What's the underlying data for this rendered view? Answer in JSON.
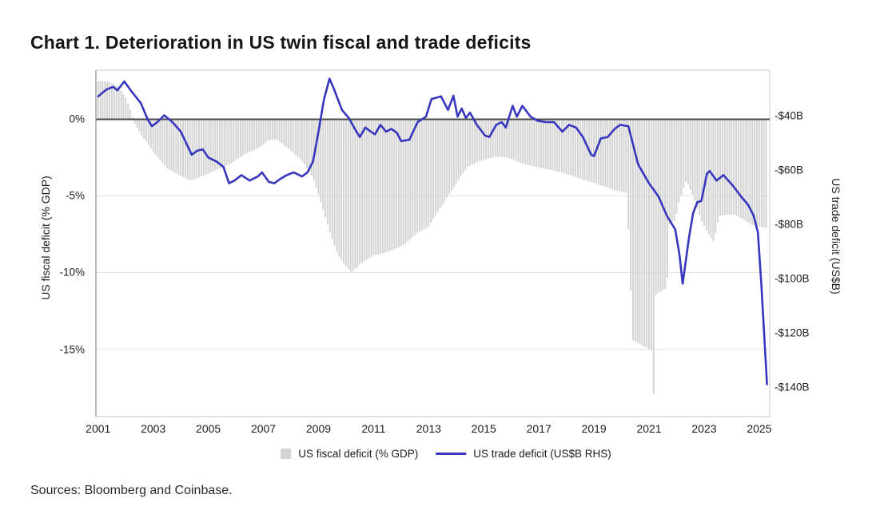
{
  "title": "Chart 1. Deterioration in US twin fiscal and trade deficits",
  "source_note": "Sources: Bloomberg and Coinbase.",
  "legend": [
    {
      "label": "US fiscal deficit (% GDP)",
      "swatch": "square",
      "color": "#d4d4d4"
    },
    {
      "label": "US trade deficit (US$B RHS)",
      "swatch": "line",
      "color": "#3737bd"
    }
  ],
  "colors": {
    "bar": "#d4d4d4",
    "line": "#3737bd",
    "zero_line": "#4a4a4a",
    "grid": "#e3e3e3",
    "plot_border": "#c9c9c9",
    "axis_spine": "#8a8a8a",
    "text": "#1c1c1c"
  },
  "chart_data": {
    "type": "bar",
    "subtype": "combo-bar-line-dual-axis",
    "x_axis": {
      "min": 2000.92,
      "max": 2025.38,
      "ticks": [
        2001,
        2003,
        2005,
        2007,
        2009,
        2011,
        2013,
        2015,
        2017,
        2019,
        2021,
        2023,
        2025
      ]
    },
    "left_axis": {
      "label": "US fiscal deficit (% GDP)",
      "min": -19.4,
      "max": 3.2,
      "ticks": [
        {
          "value": 0,
          "label": "0%"
        },
        {
          "value": -5,
          "label": "-5%"
        },
        {
          "value": -10,
          "label": "-10%"
        },
        {
          "value": -15,
          "label": "-15%"
        }
      ],
      "gridlines": [
        -5,
        -10,
        -15
      ]
    },
    "right_axis": {
      "label": "US trade deficit (US$B)",
      "min": -150.9,
      "max": -23.4,
      "ticks": [
        {
          "value": -40,
          "label": "-$40B"
        },
        {
          "value": -60,
          "label": "-$60B"
        },
        {
          "value": -80,
          "label": "-$80B"
        },
        {
          "value": -100,
          "label": "-$100B"
        },
        {
          "value": -120,
          "label": "-$120B"
        },
        {
          "value": -140,
          "label": "-$140B"
        }
      ]
    },
    "series": [
      {
        "name": "US fiscal deficit (% GDP)",
        "type": "bar",
        "axis": "left",
        "unit": "% of GDP",
        "start": 2001.0,
        "end": 2025.25,
        "interval_years": 0.08333,
        "points": [
          [
            2001.0,
            2.5
          ],
          [
            2001.4,
            2.45
          ],
          [
            2001.75,
            2.1
          ],
          [
            2002.0,
            1.4
          ],
          [
            2002.2,
            0.5
          ],
          [
            2002.3,
            -0.2
          ],
          [
            2002.6,
            -1.1
          ],
          [
            2003.0,
            -2.1
          ],
          [
            2003.5,
            -3.2
          ],
          [
            2004.0,
            -3.7
          ],
          [
            2004.35,
            -4.0
          ],
          [
            2004.8,
            -3.7
          ],
          [
            2005.3,
            -3.3
          ],
          [
            2005.8,
            -2.9
          ],
          [
            2006.3,
            -2.3
          ],
          [
            2006.8,
            -1.9
          ],
          [
            2007.2,
            -1.35
          ],
          [
            2007.5,
            -1.3
          ],
          [
            2007.9,
            -1.9
          ],
          [
            2008.4,
            -2.7
          ],
          [
            2008.8,
            -3.8
          ],
          [
            2009.1,
            -5.5
          ],
          [
            2009.4,
            -7.3
          ],
          [
            2009.7,
            -8.8
          ],
          [
            2010.0,
            -9.6
          ],
          [
            2010.2,
            -10.0
          ],
          [
            2010.6,
            -9.3
          ],
          [
            2011.0,
            -8.9
          ],
          [
            2011.6,
            -8.6
          ],
          [
            2012.1,
            -8.2
          ],
          [
            2012.6,
            -7.4
          ],
          [
            2013.0,
            -7.0
          ],
          [
            2013.2,
            -6.4
          ],
          [
            2013.6,
            -5.3
          ],
          [
            2014.0,
            -4.2
          ],
          [
            2014.4,
            -3.1
          ],
          [
            2014.9,
            -2.7
          ],
          [
            2015.4,
            -2.45
          ],
          [
            2015.9,
            -2.5
          ],
          [
            2016.4,
            -2.9
          ],
          [
            2016.9,
            -3.1
          ],
          [
            2017.4,
            -3.3
          ],
          [
            2017.9,
            -3.5
          ],
          [
            2018.4,
            -3.8
          ],
          [
            2018.9,
            -4.1
          ],
          [
            2019.4,
            -4.4
          ],
          [
            2019.9,
            -4.7
          ],
          [
            2020.2,
            -4.8
          ],
          [
            2020.4,
            -14.4
          ],
          [
            2020.7,
            -14.7
          ],
          [
            2021.0,
            -15.0
          ],
          [
            2021.1,
            -15.1
          ],
          [
            2021.17,
            -18.1
          ],
          [
            2021.25,
            -11.4
          ],
          [
            2021.65,
            -11.0
          ],
          [
            2021.75,
            -6.8
          ],
          [
            2021.95,
            -6.6
          ],
          [
            2022.1,
            -5.3
          ],
          [
            2022.35,
            -4.0
          ],
          [
            2022.6,
            -5.0
          ],
          [
            2022.9,
            -6.6
          ],
          [
            2023.1,
            -7.3
          ],
          [
            2023.35,
            -8.0
          ],
          [
            2023.55,
            -6.3
          ],
          [
            2024.1,
            -6.2
          ],
          [
            2024.4,
            -6.5
          ],
          [
            2024.75,
            -6.9
          ],
          [
            2025.0,
            -7.0
          ],
          [
            2025.25,
            -7.1
          ]
        ]
      },
      {
        "name": "US trade deficit (US$B RHS)",
        "type": "line",
        "axis": "right",
        "unit": "US$B",
        "points": [
          [
            2001.0,
            -33
          ],
          [
            2001.3,
            -30.5
          ],
          [
            2001.55,
            -29.5
          ],
          [
            2001.7,
            -30.8
          ],
          [
            2001.95,
            -27.5
          ],
          [
            2002.2,
            -31
          ],
          [
            2002.55,
            -35.5
          ],
          [
            2002.8,
            -41.5
          ],
          [
            2002.95,
            -44
          ],
          [
            2003.15,
            -42.5
          ],
          [
            2003.4,
            -40
          ],
          [
            2003.7,
            -42.5
          ],
          [
            2004.0,
            -46
          ],
          [
            2004.4,
            -54.5
          ],
          [
            2004.6,
            -53
          ],
          [
            2004.8,
            -52.5
          ],
          [
            2005.0,
            -55.5
          ],
          [
            2005.3,
            -57
          ],
          [
            2005.55,
            -59
          ],
          [
            2005.75,
            -65
          ],
          [
            2005.95,
            -64
          ],
          [
            2006.2,
            -62
          ],
          [
            2006.5,
            -64
          ],
          [
            2006.8,
            -62.5
          ],
          [
            2006.95,
            -61
          ],
          [
            2007.2,
            -64.5
          ],
          [
            2007.4,
            -65
          ],
          [
            2007.6,
            -63.5
          ],
          [
            2007.85,
            -62
          ],
          [
            2008.1,
            -61
          ],
          [
            2008.4,
            -62.5
          ],
          [
            2008.6,
            -61
          ],
          [
            2008.8,
            -57
          ],
          [
            2009.0,
            -46
          ],
          [
            2009.2,
            -34
          ],
          [
            2009.4,
            -26.5
          ],
          [
            2009.55,
            -30
          ],
          [
            2009.85,
            -38
          ],
          [
            2010.1,
            -41
          ],
          [
            2010.35,
            -45.5
          ],
          [
            2010.5,
            -48
          ],
          [
            2010.7,
            -44.5
          ],
          [
            2010.9,
            -46
          ],
          [
            2011.05,
            -47
          ],
          [
            2011.25,
            -43.5
          ],
          [
            2011.45,
            -46
          ],
          [
            2011.65,
            -45
          ],
          [
            2011.85,
            -46.5
          ],
          [
            2012.0,
            -49.5
          ],
          [
            2012.3,
            -49
          ],
          [
            2012.6,
            -42.5
          ],
          [
            2012.9,
            -40.5
          ],
          [
            2013.1,
            -34
          ],
          [
            2013.45,
            -33
          ],
          [
            2013.7,
            -38
          ],
          [
            2013.9,
            -32.8
          ],
          [
            2014.05,
            -40.5
          ],
          [
            2014.2,
            -37.5
          ],
          [
            2014.35,
            -41
          ],
          [
            2014.5,
            -39
          ],
          [
            2014.75,
            -43.5
          ],
          [
            2015.05,
            -47.5
          ],
          [
            2015.2,
            -48
          ],
          [
            2015.45,
            -43.5
          ],
          [
            2015.65,
            -42.5
          ],
          [
            2015.8,
            -44.5
          ],
          [
            2016.05,
            -36.5
          ],
          [
            2016.2,
            -40.5
          ],
          [
            2016.4,
            -36.5
          ],
          [
            2016.7,
            -40.5
          ],
          [
            2016.95,
            -42
          ],
          [
            2017.25,
            -42.5
          ],
          [
            2017.55,
            -42.5
          ],
          [
            2017.85,
            -46
          ],
          [
            2018.1,
            -43.5
          ],
          [
            2018.35,
            -44.5
          ],
          [
            2018.6,
            -48
          ],
          [
            2018.9,
            -54.5
          ],
          [
            2019.0,
            -55
          ],
          [
            2019.25,
            -48.5
          ],
          [
            2019.5,
            -48
          ],
          [
            2019.75,
            -45
          ],
          [
            2019.95,
            -43.5
          ],
          [
            2020.25,
            -44
          ],
          [
            2020.6,
            -58
          ],
          [
            2021.0,
            -65
          ],
          [
            2021.35,
            -70
          ],
          [
            2021.65,
            -77
          ],
          [
            2021.95,
            -82
          ],
          [
            2022.1,
            -91
          ],
          [
            2022.22,
            -102
          ],
          [
            2022.45,
            -85
          ],
          [
            2022.6,
            -76
          ],
          [
            2022.75,
            -72
          ],
          [
            2022.9,
            -71.5
          ],
          [
            2023.1,
            -61.5
          ],
          [
            2023.2,
            -60.5
          ],
          [
            2023.45,
            -64
          ],
          [
            2023.7,
            -62
          ],
          [
            2024.05,
            -66
          ],
          [
            2024.35,
            -70
          ],
          [
            2024.6,
            -73
          ],
          [
            2024.8,
            -77
          ],
          [
            2024.95,
            -83
          ],
          [
            2025.08,
            -103
          ],
          [
            2025.28,
            -139
          ]
        ]
      }
    ]
  }
}
